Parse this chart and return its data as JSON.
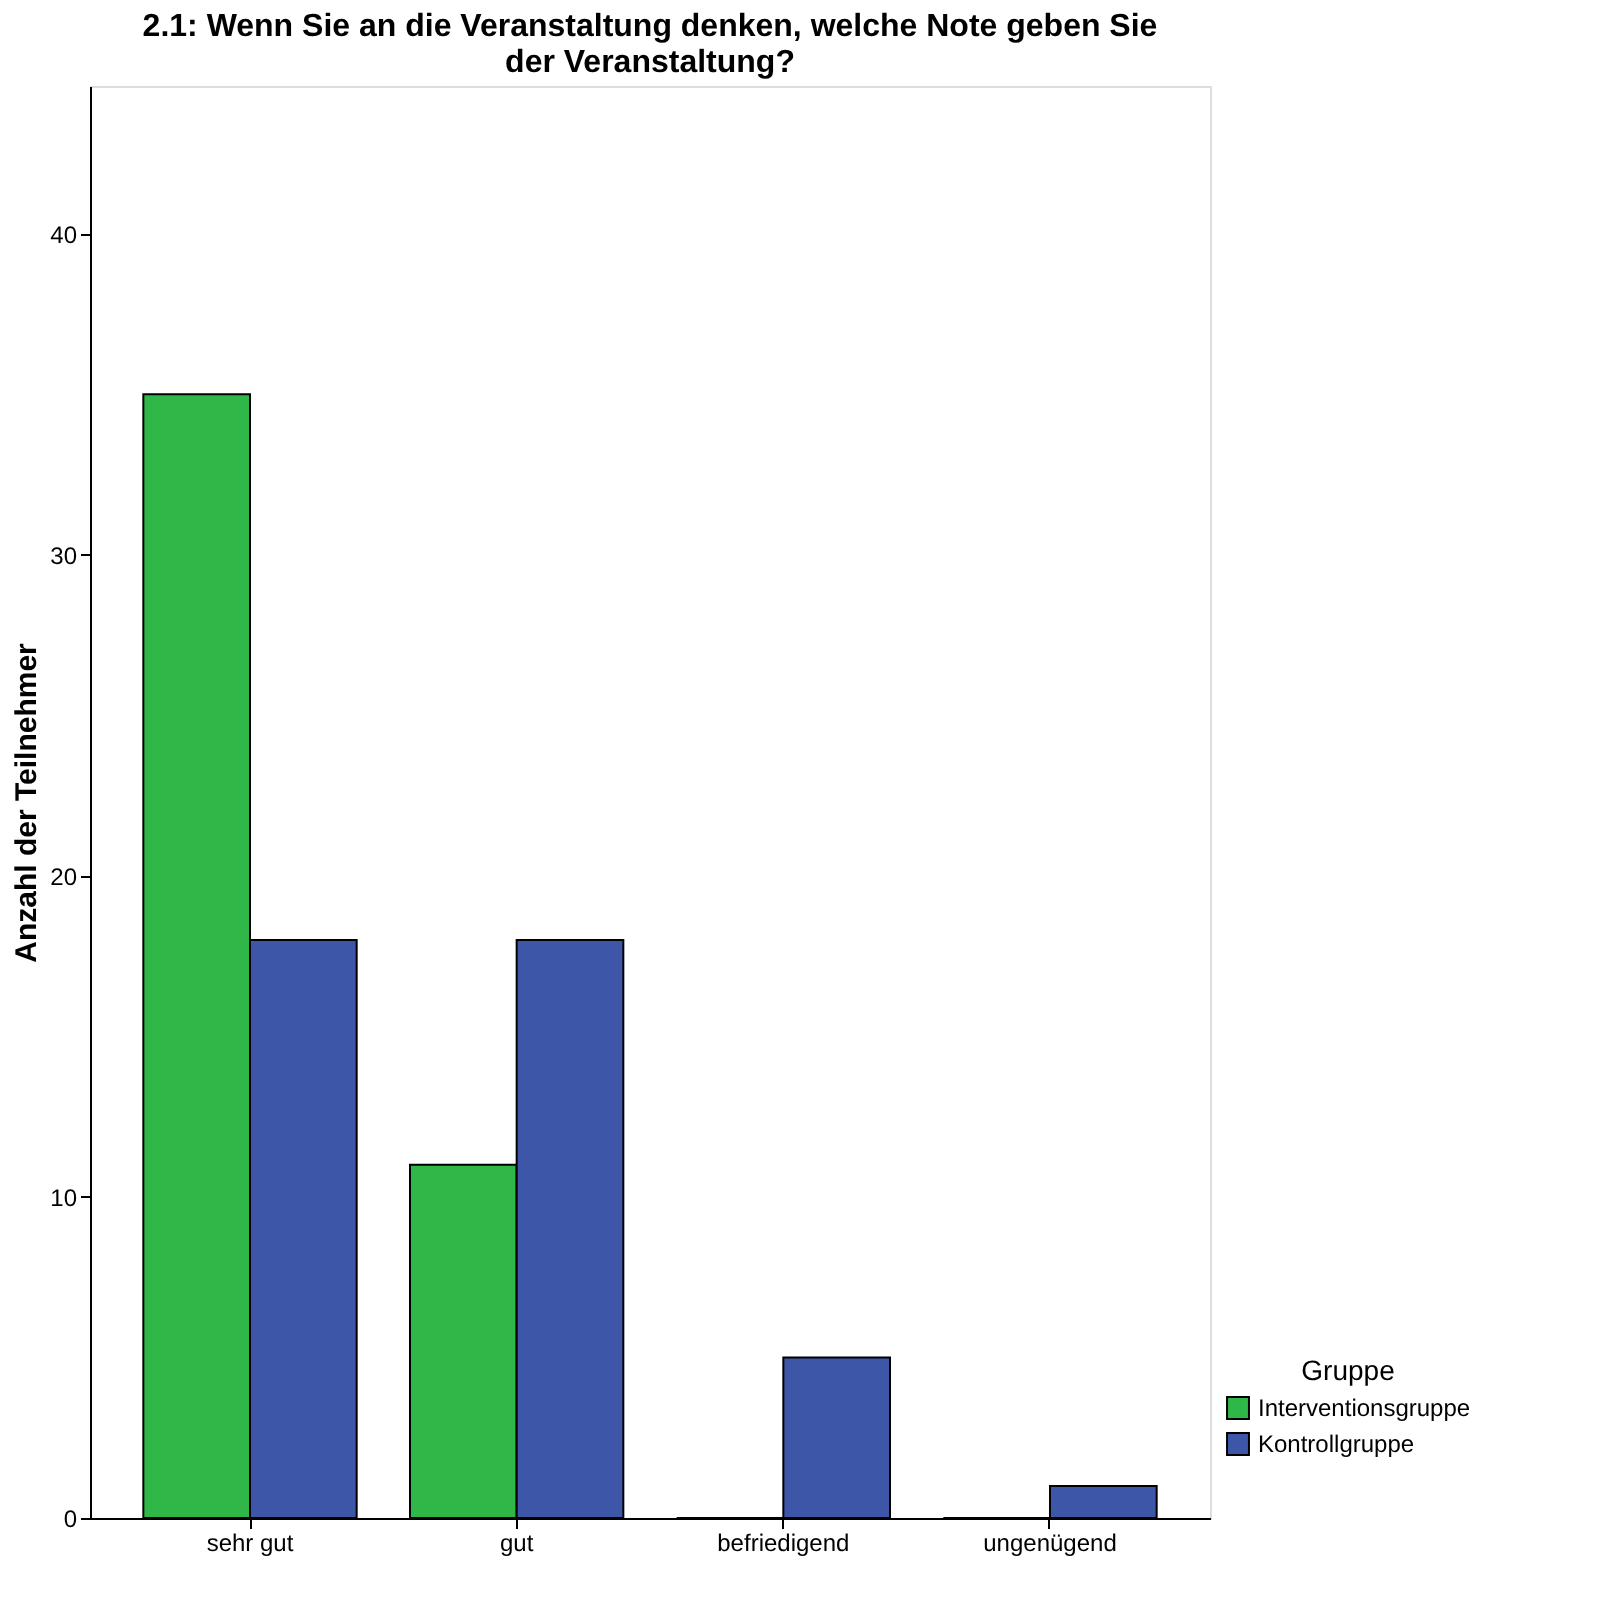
{
  "chart_data": {
    "type": "bar",
    "title": "2.1: Wenn Sie an die Veranstaltung denken, welche Note geben Sie der Veranstaltung?",
    "ylabel": "Anzahl der Teilnehmer",
    "legend_title": "Gruppe",
    "categories": [
      "sehr gut",
      "gut",
      "befriedigend",
      "ungenügend"
    ],
    "series": [
      {
        "name": "Interventionsgruppe",
        "color": "#2fb847",
        "values": [
          35,
          11,
          0,
          0
        ]
      },
      {
        "name": "Kontrollgruppe",
        "color": "#3d56a8",
        "values": [
          18,
          18,
          5,
          1
        ]
      }
    ],
    "ylim": [
      0,
      44.6
    ],
    "yticks": [
      0,
      10,
      20,
      30,
      40
    ],
    "grid": false,
    "legend": "bottom right"
  }
}
